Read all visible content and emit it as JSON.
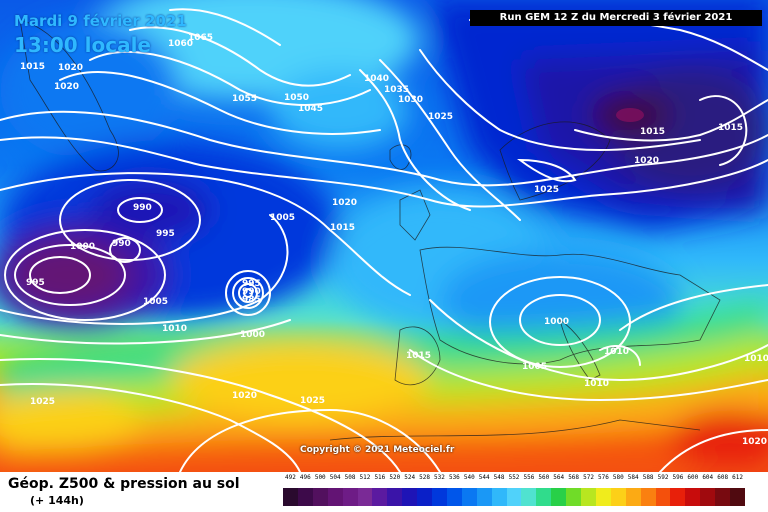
{
  "title": {
    "date": "Mardi 9 février 2021",
    "time": "13:00 locale"
  },
  "run_info": "Run GEM 12 Z du Mercredi 3 février 2021",
  "copyright": "Copyright © 2021 Meteociel.fr",
  "legend": {
    "title": "Géop. Z500 & pression au sol",
    "subtitle": "(+ 144h)",
    "scale": [
      {
        "value": "492",
        "color": "#2a0a2e"
      },
      {
        "value": "496",
        "color": "#3d0a4a"
      },
      {
        "value": "500",
        "color": "#52105e"
      },
      {
        "value": "504",
        "color": "#631474"
      },
      {
        "value": "508",
        "color": "#6e1c86"
      },
      {
        "value": "512",
        "color": "#7a2a96"
      },
      {
        "value": "516",
        "color": "#5b1aa0"
      },
      {
        "value": "520",
        "color": "#3a14a8"
      },
      {
        "value": "524",
        "color": "#1e14b6"
      },
      {
        "value": "528",
        "color": "#0a20c8"
      },
      {
        "value": "532",
        "color": "#0038dc"
      },
      {
        "value": "536",
        "color": "#0056ea"
      },
      {
        "value": "540",
        "color": "#0a78f2"
      },
      {
        "value": "544",
        "color": "#1a98f6"
      },
      {
        "value": "548",
        "color": "#30b8fa"
      },
      {
        "value": "552",
        "color": "#50d2fa"
      },
      {
        "value": "556",
        "color": "#50e2d0"
      },
      {
        "value": "560",
        "color": "#30dc8c"
      },
      {
        "value": "564",
        "color": "#28d048"
      },
      {
        "value": "568",
        "color": "#70dc28"
      },
      {
        "value": "572",
        "color": "#b8e620"
      },
      {
        "value": "576",
        "color": "#f0ec1c"
      },
      {
        "value": "580",
        "color": "#fcd018"
      },
      {
        "value": "584",
        "color": "#fcaa14"
      },
      {
        "value": "588",
        "color": "#fa8010"
      },
      {
        "value": "592",
        "color": "#f4500c"
      },
      {
        "value": "596",
        "color": "#e8200a"
      },
      {
        "value": "600",
        "color": "#c80c0c"
      },
      {
        "value": "604",
        "color": "#a00a0e"
      },
      {
        "value": "608",
        "color": "#780a10"
      },
      {
        "value": "612",
        "color": "#500a10"
      }
    ]
  },
  "isobars": [
    {
      "id": "i1",
      "value": "1015"
    },
    {
      "id": "i2",
      "value": "1020"
    },
    {
      "id": "i3",
      "value": "1020"
    },
    {
      "id": "i4",
      "value": "1060"
    },
    {
      "id": "i5",
      "value": "1065"
    },
    {
      "id": "i6",
      "value": "1055"
    },
    {
      "id": "i7",
      "value": "1050"
    },
    {
      "id": "i8",
      "value": "1045"
    },
    {
      "id": "i9",
      "value": "1040"
    },
    {
      "id": "i10",
      "value": "1035"
    },
    {
      "id": "i11",
      "value": "1030"
    },
    {
      "id": "i12",
      "value": "1025"
    },
    {
      "id": "i13",
      "value": "1015"
    },
    {
      "id": "i14",
      "value": "1015"
    },
    {
      "id": "i15",
      "value": "1020"
    },
    {
      "id": "i16",
      "value": "1025"
    },
    {
      "id": "i17",
      "value": "990"
    },
    {
      "id": "i18",
      "value": "1000"
    },
    {
      "id": "i19",
      "value": "990"
    },
    {
      "id": "i20",
      "value": "995"
    },
    {
      "id": "i21",
      "value": "995"
    },
    {
      "id": "i22",
      "value": "1005"
    },
    {
      "id": "i23",
      "value": "1010"
    },
    {
      "id": "i24",
      "value": "1005"
    },
    {
      "id": "i25",
      "value": "1020"
    },
    {
      "id": "i26",
      "value": "1015"
    },
    {
      "id": "i27",
      "value": "995"
    },
    {
      "id": "i28",
      "value": "990"
    },
    {
      "id": "i29",
      "value": "985"
    },
    {
      "id": "i30",
      "value": "1000"
    },
    {
      "id": "i31",
      "value": "1000"
    },
    {
      "id": "i32",
      "value": "1015"
    },
    {
      "id": "i33",
      "value": "1005"
    },
    {
      "id": "i34",
      "value": "1010"
    },
    {
      "id": "i35",
      "value": "1010"
    },
    {
      "id": "i36",
      "value": "1025"
    },
    {
      "id": "i37",
      "value": "1020"
    },
    {
      "id": "i38",
      "value": "1025"
    },
    {
      "id": "i39",
      "value": "1020"
    },
    {
      "id": "i40",
      "value": "1010"
    }
  ]
}
